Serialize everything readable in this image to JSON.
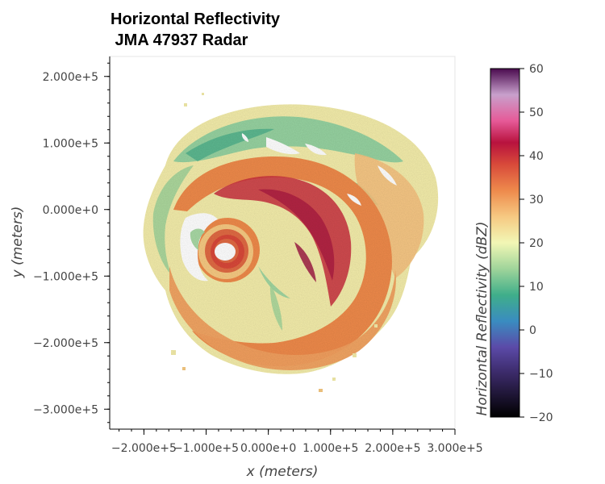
{
  "chart_data": {
    "type": "heatmap",
    "title": [
      "Horizontal Reflectivity",
      " JMA 47937 Radar"
    ],
    "xlabel": "x (meters)",
    "ylabel": "y (meters)",
    "xlim": [
      -255000,
      300000
    ],
    "ylim": [
      -330000,
      230000
    ],
    "x_ticks": [
      {
        "value": -200000,
        "label": "−2.000e+5"
      },
      {
        "value": -100000,
        "label": "−1.000e+5"
      },
      {
        "value": 0,
        "label": "0.000e+0"
      },
      {
        "value": 100000,
        "label": "1.000e+5"
      },
      {
        "value": 200000,
        "label": "2.000e+5"
      },
      {
        "value": 300000,
        "label": "3.000e+5"
      }
    ],
    "y_ticks": [
      {
        "value": 200000,
        "label": "2.000e+5"
      },
      {
        "value": 100000,
        "label": "1.000e+5"
      },
      {
        "value": 0,
        "label": "0.000e+0"
      },
      {
        "value": -100000,
        "label": "−1.000e+5"
      },
      {
        "value": -200000,
        "label": "−2.000e+5"
      },
      {
        "value": -300000,
        "label": "−3.000e+5"
      }
    ],
    "colorbar": {
      "label": "Horizontal Reflectivity (dBZ)",
      "range": [
        -20,
        60
      ],
      "ticks": [
        {
          "value": 60,
          "label": "60"
        },
        {
          "value": 50,
          "label": "50"
        },
        {
          "value": 40,
          "label": "40"
        },
        {
          "value": 30,
          "label": "30"
        },
        {
          "value": 20,
          "label": "20"
        },
        {
          "value": 10,
          "label": "10"
        },
        {
          "value": 0,
          "label": "0"
        },
        {
          "value": -10,
          "label": "−10"
        },
        {
          "value": -20,
          "label": "−20"
        }
      ],
      "colormap": "Spectral-like",
      "stops": [
        {
          "value": -20,
          "color": "#000000"
        },
        {
          "value": -10,
          "color": "#3b2a68"
        },
        {
          "value": -4,
          "color": "#5b4aa8"
        },
        {
          "value": 2,
          "color": "#3a8cc0"
        },
        {
          "value": 8,
          "color": "#3fae8a"
        },
        {
          "value": 14,
          "color": "#9fd49a"
        },
        {
          "value": 20,
          "color": "#f2f7b5"
        },
        {
          "value": 26,
          "color": "#f6c982"
        },
        {
          "value": 32,
          "color": "#ee8a4c"
        },
        {
          "value": 38,
          "color": "#d84a3a"
        },
        {
          "value": 43,
          "color": "#b8123e"
        },
        {
          "value": 48,
          "color": "#e65a98"
        },
        {
          "value": 54,
          "color": "#c8a0cc"
        },
        {
          "value": 60,
          "color": "#4a0a4e"
        }
      ]
    },
    "storm_center": {
      "x": -60000,
      "y": -55000
    },
    "grid": false
  }
}
